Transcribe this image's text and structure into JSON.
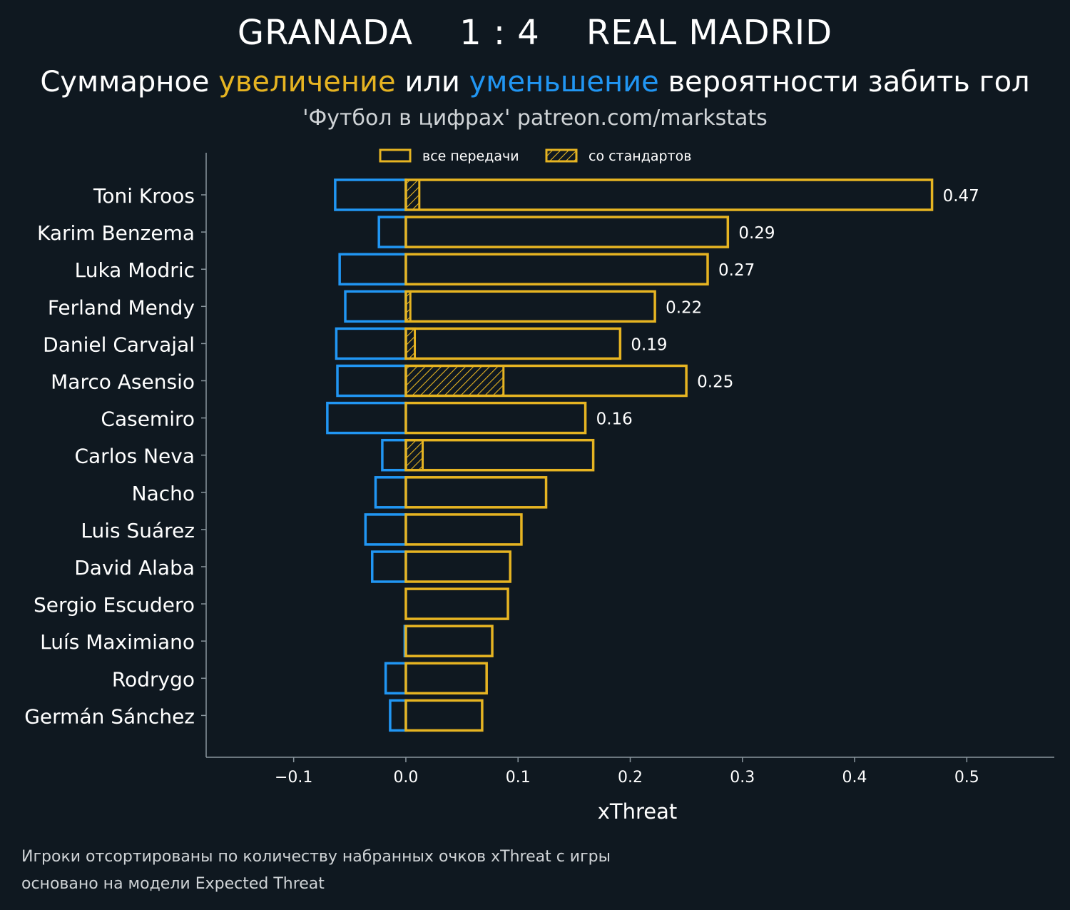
{
  "header": {
    "home_team": "GRANADA",
    "score": "1 : 4",
    "away_team": "REAL MADRID",
    "subtitle_part1": "Суммарное ",
    "subtitle_increase": "увеличение",
    "subtitle_part2": " или ",
    "subtitle_decrease": "уменьшение",
    "subtitle_part3": " вероятности забить гол",
    "credit": "'Футбол в цифрах' patreon.com/markstats"
  },
  "footnotes": [
    "Игроки отсортированы по количеству набранных очков xThreat с игры",
    "основано на модели Expected Threat"
  ],
  "colors": {
    "background": "#0f1820",
    "positive": "#e6b422",
    "negative": "#2196f3",
    "axis": "#8a969e",
    "text": "#ffffff"
  },
  "chart_data": {
    "type": "bar",
    "orientation": "horizontal",
    "xlabel": "xThreat",
    "xlim": [
      -0.178,
      0.578
    ],
    "xticks": [
      -0.1,
      0.0,
      0.1,
      0.2,
      0.3,
      0.4,
      0.5
    ],
    "xtick_labels": [
      "−0.1",
      "0.0",
      "0.1",
      "0.2",
      "0.3",
      "0.4",
      "0.5"
    ],
    "legend": {
      "position": "top-center",
      "entries": [
        "все передачи",
        "со стандартов"
      ]
    },
    "players": [
      {
        "name": "Toni Kroos",
        "positive": 0.469,
        "set_piece": 0.012,
        "negative": -0.063,
        "label": "0.47"
      },
      {
        "name": "Karim Benzema",
        "positive": 0.287,
        "set_piece": 0.0,
        "negative": -0.024,
        "label": "0.29"
      },
      {
        "name": "Luka Modric",
        "positive": 0.269,
        "set_piece": 0.0,
        "negative": -0.059,
        "label": "0.27"
      },
      {
        "name": "Ferland Mendy",
        "positive": 0.222,
        "set_piece": 0.004,
        "negative": -0.054,
        "label": "0.22"
      },
      {
        "name": "Daniel Carvajal",
        "positive": 0.191,
        "set_piece": 0.008,
        "negative": -0.062,
        "label": "0.19"
      },
      {
        "name": "Marco Asensio",
        "positive": 0.25,
        "set_piece": 0.087,
        "negative": -0.061,
        "label": "0.25"
      },
      {
        "name": "Casemiro",
        "positive": 0.16,
        "set_piece": 0.0,
        "negative": -0.07,
        "label": "0.16"
      },
      {
        "name": "Carlos Neva",
        "positive": 0.167,
        "set_piece": 0.015,
        "negative": -0.021,
        "label": ""
      },
      {
        "name": "Nacho",
        "positive": 0.125,
        "set_piece": 0.0,
        "negative": -0.027,
        "label": ""
      },
      {
        "name": "Luis Suárez",
        "positive": 0.103,
        "set_piece": 0.0,
        "negative": -0.036,
        "label": ""
      },
      {
        "name": "David Alaba",
        "positive": 0.093,
        "set_piece": 0.0,
        "negative": -0.03,
        "label": ""
      },
      {
        "name": "Sergio Escudero",
        "positive": 0.091,
        "set_piece": 0.0,
        "negative": 0.0,
        "label": ""
      },
      {
        "name": "Luís Maximiano",
        "positive": 0.077,
        "set_piece": 0.0,
        "negative": -0.001,
        "label": ""
      },
      {
        "name": "Rodrygo",
        "positive": 0.072,
        "set_piece": 0.0,
        "negative": -0.018,
        "label": ""
      },
      {
        "name": "Germán Sánchez",
        "positive": 0.068,
        "set_piece": 0.0,
        "negative": -0.014,
        "label": ""
      }
    ]
  }
}
